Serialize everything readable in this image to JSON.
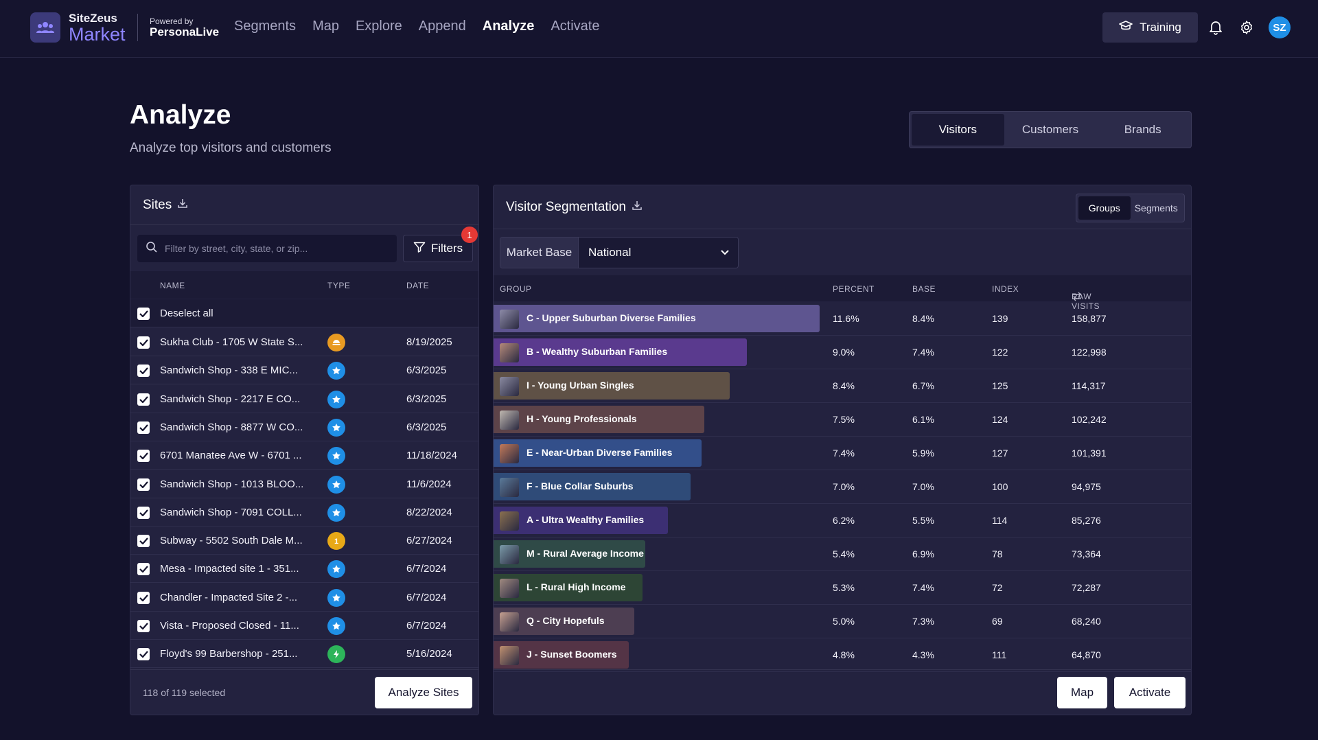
{
  "nav": {
    "brand_top": "SiteZeus",
    "brand_bottom": "Market",
    "powered_by": "Powered by",
    "powered_name": "PersonaLive",
    "links": [
      "Segments",
      "Map",
      "Explore",
      "Append",
      "Analyze",
      "Activate"
    ],
    "active_link": "Analyze",
    "training_label": "Training",
    "avatar_initials": "SZ"
  },
  "header": {
    "title": "Analyze",
    "subtitle": "Analyze top visitors and customers",
    "tabs": [
      "Visitors",
      "Customers",
      "Brands"
    ],
    "active_tab": "Visitors"
  },
  "sites": {
    "title": "Sites",
    "search_placeholder": "Filter by street, city, state, or zip...",
    "filters_label": "Filters",
    "filters_badge": "1",
    "columns": [
      "NAME",
      "TYPE",
      "DATE"
    ],
    "deselect_label": "Deselect all",
    "rows": [
      {
        "name": "Sukha Club - 1705 W State S...",
        "type": "orange",
        "date": "8/19/2025"
      },
      {
        "name": "Sandwich Shop - 338 E MIC...",
        "type": "blue",
        "date": "6/3/2025"
      },
      {
        "name": "Sandwich Shop - 2217 E CO...",
        "type": "blue",
        "date": "6/3/2025"
      },
      {
        "name": "Sandwich Shop - 8877 W CO...",
        "type": "blue",
        "date": "6/3/2025"
      },
      {
        "name": "6701 Manatee Ave W - 6701 ...",
        "type": "blue",
        "date": "11/18/2024"
      },
      {
        "name": "Sandwich Shop - 1013 BLOO...",
        "type": "blue",
        "date": "11/6/2024"
      },
      {
        "name": "Sandwich Shop - 7091 COLL...",
        "type": "blue",
        "date": "8/22/2024"
      },
      {
        "name": "Subway - 5502 South Dale M...",
        "type": "yellow",
        "date": "6/27/2024"
      },
      {
        "name": "Mesa - Impacted site 1 - 351...",
        "type": "blue",
        "date": "6/7/2024"
      },
      {
        "name": "Chandler - Impacted Site 2 -...",
        "type": "blue",
        "date": "6/7/2024"
      },
      {
        "name": "Vista - Proposed Closed - 11...",
        "type": "blue",
        "date": "6/7/2024"
      },
      {
        "name": "Floyd's 99 Barbershop - 251...",
        "type": "green",
        "date": "5/16/2024"
      }
    ],
    "selected_text": "118 of 119 selected",
    "analyze_label": "Analyze Sites"
  },
  "segmentation": {
    "title": "Visitor Segmentation",
    "toggle": [
      "Groups",
      "Segments"
    ],
    "active_toggle": "Groups",
    "market_base_label": "Market Base",
    "market_base_value": "National",
    "columns": [
      "GROUP",
      "PERCENT",
      "BASE",
      "INDEX",
      "RAW VISITS"
    ],
    "rows": [
      {
        "group": "C - Upper Suburban Diverse Families",
        "percent": "11.6%",
        "percent_value": 11.6,
        "base": "8.4%",
        "index": "139",
        "raw": "158,877",
        "color": "#5e5590",
        "thumb": "#8d8ba8"
      },
      {
        "group": "B - Wealthy Suburban Families",
        "percent": "9.0%",
        "percent_value": 9.0,
        "base": "7.4%",
        "index": "122",
        "raw": "122,998",
        "color": "#5a3a8e",
        "thumb": "#b58a7a"
      },
      {
        "group": "I - Young Urban Singles",
        "percent": "8.4%",
        "percent_value": 8.4,
        "base": "6.7%",
        "index": "125",
        "raw": "114,317",
        "color": "#5f5146",
        "thumb": "#8a8aa0"
      },
      {
        "group": "H - Young Professionals",
        "percent": "7.5%",
        "percent_value": 7.5,
        "base": "6.1%",
        "index": "124",
        "raw": "102,242",
        "color": "#5d4349",
        "thumb": "#c0b8b0"
      },
      {
        "group": "E - Near-Urban Diverse Families",
        "percent": "7.4%",
        "percent_value": 7.4,
        "base": "5.9%",
        "index": "127",
        "raw": "101,391",
        "color": "#334f8a",
        "thumb": "#c27a5a"
      },
      {
        "group": "F - Blue Collar Suburbs",
        "percent": "7.0%",
        "percent_value": 7.0,
        "base": "7.0%",
        "index": "100",
        "raw": "94,975",
        "color": "#2f4b78",
        "thumb": "#5a7a9a"
      },
      {
        "group": "A - Ultra Wealthy Families",
        "percent": "6.2%",
        "percent_value": 6.2,
        "base": "5.5%",
        "index": "114",
        "raw": "85,276",
        "color": "#3c2f73",
        "thumb": "#8a7050"
      },
      {
        "group": "M - Rural Average Income",
        "percent": "5.4%",
        "percent_value": 5.4,
        "base": "6.9%",
        "index": "78",
        "raw": "73,364",
        "color": "#2f4a47",
        "thumb": "#7a9aa8"
      },
      {
        "group": "L - Rural High Income",
        "percent": "5.3%",
        "percent_value": 5.3,
        "base": "7.4%",
        "index": "72",
        "raw": "72,287",
        "color": "#2d4535",
        "thumb": "#a08a80"
      },
      {
        "group": "Q - City Hopefuls",
        "percent": "5.0%",
        "percent_value": 5.0,
        "base": "7.3%",
        "index": "69",
        "raw": "68,240",
        "color": "#4d3e52",
        "thumb": "#c6a090"
      },
      {
        "group": "J - Sunset Boomers",
        "percent": "4.8%",
        "percent_value": 4.8,
        "base": "4.3%",
        "index": "111",
        "raw": "64,870",
        "color": "#543446",
        "thumb": "#c09070"
      }
    ],
    "map_label": "Map",
    "activate_label": "Activate"
  },
  "colors": {
    "accent": "#8f86ff",
    "type_orange": "#e89a22",
    "type_blue": "#1f8fe6",
    "type_yellow": "#e8a917",
    "type_green": "#2db45a",
    "badge": "#e53935"
  }
}
